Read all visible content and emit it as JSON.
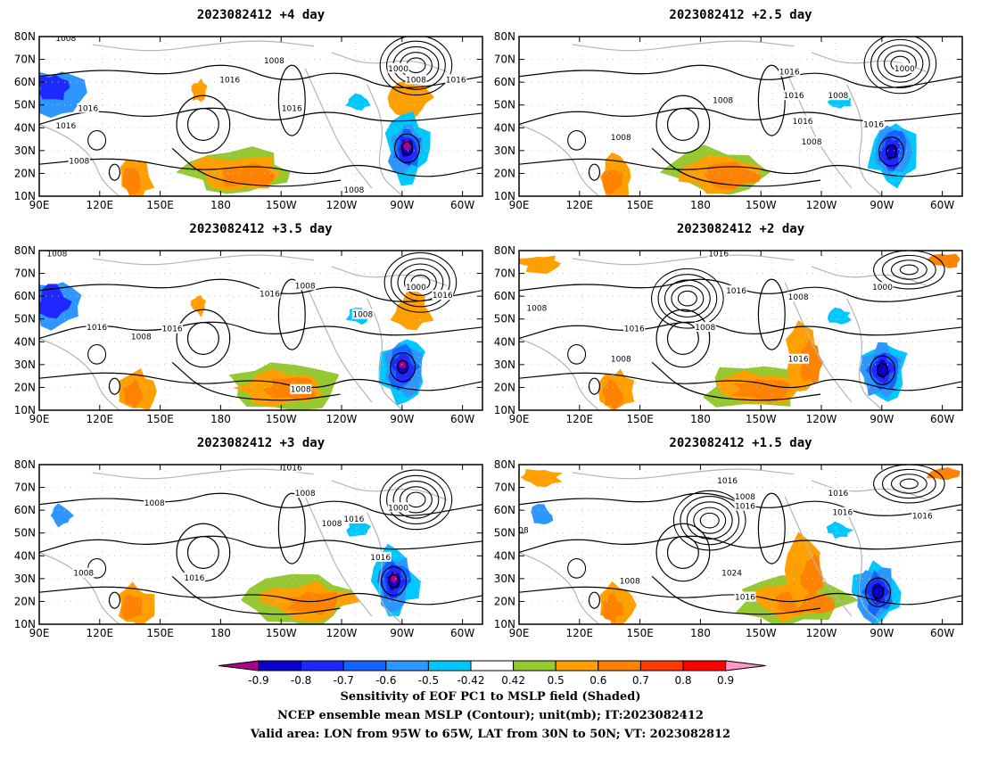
{
  "panels": [
    {
      "title": "2023082412 +4 day"
    },
    {
      "title": "2023082412 +2.5 day"
    },
    {
      "title": "2023082412 +3.5 day"
    },
    {
      "title": "2023082412 +2 day"
    },
    {
      "title": "2023082412 +3 day"
    },
    {
      "title": "2023082412 +1.5 day"
    }
  ],
  "lat_ticks": [
    "10N",
    "20N",
    "30N",
    "40N",
    "50N",
    "60N",
    "70N",
    "80N"
  ],
  "lon_ticks": [
    "90E",
    "120E",
    "150E",
    "180",
    "150W",
    "120W",
    "90W",
    "60W"
  ],
  "contour_labels": {
    "p0": [
      "1008",
      "1008",
      "1016",
      "1016",
      "1000",
      "1008",
      "1016",
      "1016",
      "1016",
      "1008",
      "1008"
    ],
    "p1": [
      "1016",
      "1008",
      "1016",
      "1016",
      "1000",
      "1008",
      "1016",
      "1008",
      "1008"
    ],
    "p2": [
      "1008",
      "1016",
      "1008",
      "1016",
      "1016",
      "1008",
      "1008",
      "1000",
      "1016",
      "1008"
    ],
    "p3": [
      "1008",
      "1016",
      "1008",
      "1016",
      "1016",
      "1008",
      "1000",
      "1016",
      "1008"
    ],
    "p4": [
      "1008",
      "1016",
      "1008",
      "1008",
      "1016",
      "1000",
      "1016",
      "1008",
      "1016"
    ],
    "p5": [
      "08",
      "1016",
      "1016",
      "1008",
      "1016",
      "1016",
      "1008",
      "1024",
      "1016",
      "1016"
    ]
  },
  "colorbar": {
    "labels": [
      "-0.9",
      "-0.8",
      "-0.7",
      "-0.6",
      "-0.5",
      "-0.42",
      "0.42",
      "0.5",
      "0.6",
      "0.7",
      "0.8",
      "0.9"
    ],
    "colors": [
      "#b0008a",
      "#0a00c8",
      "#1e28ff",
      "#1464ff",
      "#2d96ff",
      "#00c8ff",
      "#ffffff",
      "#96c832",
      "#ffa000",
      "#ff8200",
      "#ff3c00",
      "#ff0000",
      "#ff96c8"
    ]
  },
  "footer": {
    "line1": "Sensitivity of EOF PC1 to MSLP field (Shaded)",
    "line2": "NCEP ensemble mean MSLP (Contour); unit(mb); IT:2023082412",
    "line3": "Valid area: LON from 95W to 65W, LAT from 30N to 50N; VT: 2023082812"
  }
}
